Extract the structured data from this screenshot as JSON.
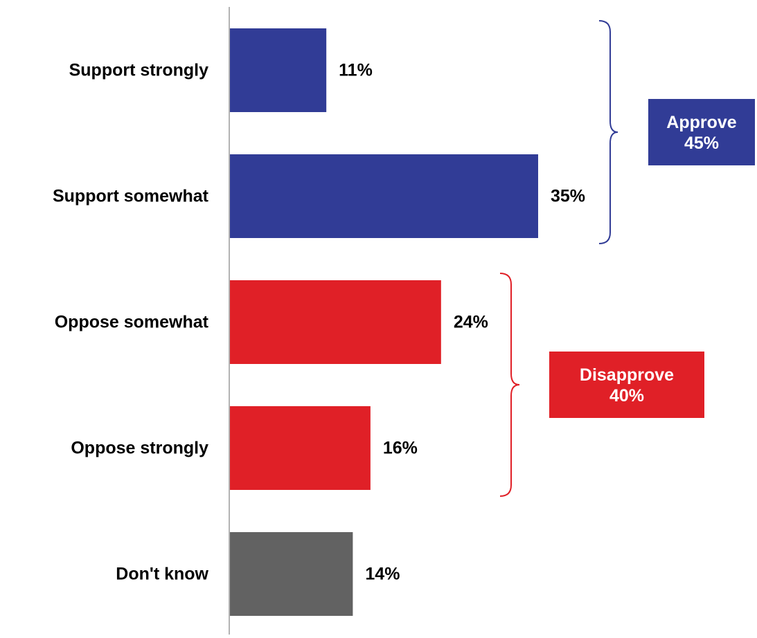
{
  "chart_data": {
    "type": "bar",
    "orientation": "horizontal",
    "categories": [
      "Support strongly",
      "Support somewhat",
      "Oppose somewhat",
      "Oppose strongly",
      "Don't know"
    ],
    "values": [
      11,
      35,
      24,
      16,
      14
    ],
    "value_labels": [
      "11%",
      "35%",
      "24%",
      "16%",
      "14%"
    ],
    "bar_colors": [
      "#313c96",
      "#313c96",
      "#e02027",
      "#e02027",
      "#626262"
    ],
    "title": "",
    "xlabel": "",
    "ylabel": "",
    "xlim": [
      0,
      35
    ],
    "grid": false,
    "groups": [
      {
        "label": "Approve",
        "value_label": "45%",
        "color": "#313c96",
        "categories": [
          0,
          1
        ]
      },
      {
        "label": "Disapprove",
        "value_label": "40%",
        "color": "#e02027",
        "categories": [
          2,
          3
        ]
      }
    ]
  }
}
